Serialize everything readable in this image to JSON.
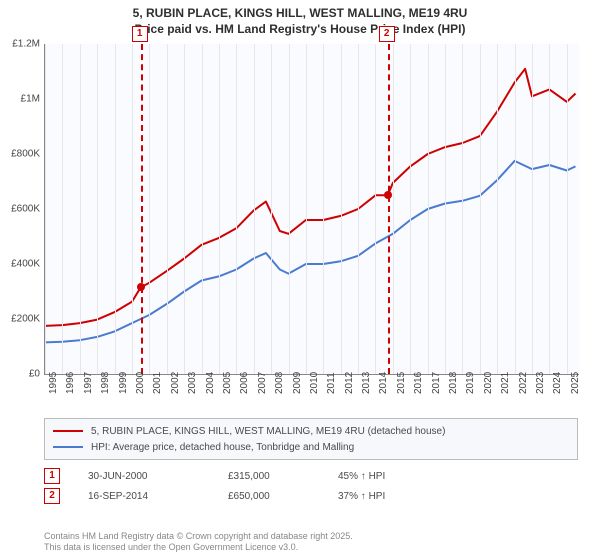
{
  "title_line1": "5, RUBIN PLACE, KINGS HILL, WEST MALLING, ME19 4RU",
  "title_line2": "Price paid vs. HM Land Registry's House Price Index (HPI)",
  "chart": {
    "type": "line",
    "background_color": "#fafbff",
    "grid_color": "#e6e6ec",
    "axis_color": "#888888",
    "x_years": [
      1995,
      1996,
      1997,
      1998,
      1999,
      2000,
      2001,
      2002,
      2003,
      2004,
      2005,
      2006,
      2007,
      2008,
      2009,
      2010,
      2011,
      2012,
      2013,
      2014,
      2015,
      2016,
      2017,
      2018,
      2019,
      2020,
      2021,
      2022,
      2023,
      2024,
      2025
    ],
    "xlim": [
      1995,
      2025.7
    ],
    "ylim": [
      0,
      1200000
    ],
    "ytick_step": 200000,
    "ytick_labels": [
      "£0",
      "£200K",
      "£400K",
      "£600K",
      "£800K",
      "£1M",
      "£1.2M"
    ],
    "series": [
      {
        "name": "price_paid",
        "color": "#cf0000",
        "width": 2,
        "points": [
          [
            1995,
            175000
          ],
          [
            1996,
            178000
          ],
          [
            1997,
            185000
          ],
          [
            1998,
            198000
          ],
          [
            1999,
            225000
          ],
          [
            2000,
            263000
          ],
          [
            2000.5,
            315000
          ],
          [
            2001,
            332000
          ],
          [
            2002,
            375000
          ],
          [
            2003,
            420000
          ],
          [
            2004,
            470000
          ],
          [
            2005,
            495000
          ],
          [
            2006,
            530000
          ],
          [
            2007,
            595000
          ],
          [
            2007.7,
            627000
          ],
          [
            2008.5,
            520000
          ],
          [
            2009,
            510000
          ],
          [
            2010,
            560000
          ],
          [
            2011,
            560000
          ],
          [
            2012,
            575000
          ],
          [
            2013,
            600000
          ],
          [
            2014,
            650000
          ],
          [
            2014.7,
            650000
          ],
          [
            2015,
            695000
          ],
          [
            2016,
            755000
          ],
          [
            2017,
            800000
          ],
          [
            2018,
            825000
          ],
          [
            2019,
            840000
          ],
          [
            2020,
            865000
          ],
          [
            2021,
            955000
          ],
          [
            2022,
            1060000
          ],
          [
            2022.6,
            1110000
          ],
          [
            2023,
            1010000
          ],
          [
            2024,
            1035000
          ],
          [
            2025,
            990000
          ],
          [
            2025.5,
            1020000
          ]
        ]
      },
      {
        "name": "hpi",
        "color": "#4a7bd0",
        "width": 2,
        "points": [
          [
            1995,
            115000
          ],
          [
            1996,
            117000
          ],
          [
            1997,
            123000
          ],
          [
            1998,
            135000
          ],
          [
            1999,
            155000
          ],
          [
            2000,
            185000
          ],
          [
            2001,
            215000
          ],
          [
            2002,
            255000
          ],
          [
            2003,
            300000
          ],
          [
            2004,
            340000
          ],
          [
            2005,
            355000
          ],
          [
            2006,
            380000
          ],
          [
            2007,
            420000
          ],
          [
            2007.7,
            440000
          ],
          [
            2008.5,
            380000
          ],
          [
            2009,
            365000
          ],
          [
            2010,
            400000
          ],
          [
            2011,
            400000
          ],
          [
            2012,
            410000
          ],
          [
            2013,
            430000
          ],
          [
            2014,
            475000
          ],
          [
            2015,
            510000
          ],
          [
            2016,
            560000
          ],
          [
            2017,
            600000
          ],
          [
            2018,
            620000
          ],
          [
            2019,
            630000
          ],
          [
            2020,
            648000
          ],
          [
            2021,
            705000
          ],
          [
            2022,
            775000
          ],
          [
            2023,
            745000
          ],
          [
            2024,
            760000
          ],
          [
            2025,
            740000
          ],
          [
            2025.5,
            755000
          ]
        ]
      }
    ],
    "event_markers": [
      {
        "idx": "1",
        "year": 2000.5,
        "price": 315000
      },
      {
        "idx": "2",
        "year": 2014.7,
        "price": 650000
      }
    ]
  },
  "legend": {
    "rows": [
      {
        "color": "#cf0000",
        "label": "5, RUBIN PLACE, KINGS HILL, WEST MALLING, ME19 4RU (detached house)"
      },
      {
        "color": "#4a7bd0",
        "label": "HPI: Average price, detached house, Tonbridge and Malling"
      }
    ]
  },
  "sales": [
    {
      "idx": "1",
      "date": "30-JUN-2000",
      "price": "£315,000",
      "pct": "45% ↑ HPI"
    },
    {
      "idx": "2",
      "date": "16-SEP-2014",
      "price": "£650,000",
      "pct": "37% ↑ HPI"
    }
  ],
  "attribution_line1": "Contains HM Land Registry data © Crown copyright and database right 2025.",
  "attribution_line2": "This data is licensed under the Open Government Licence v3.0."
}
